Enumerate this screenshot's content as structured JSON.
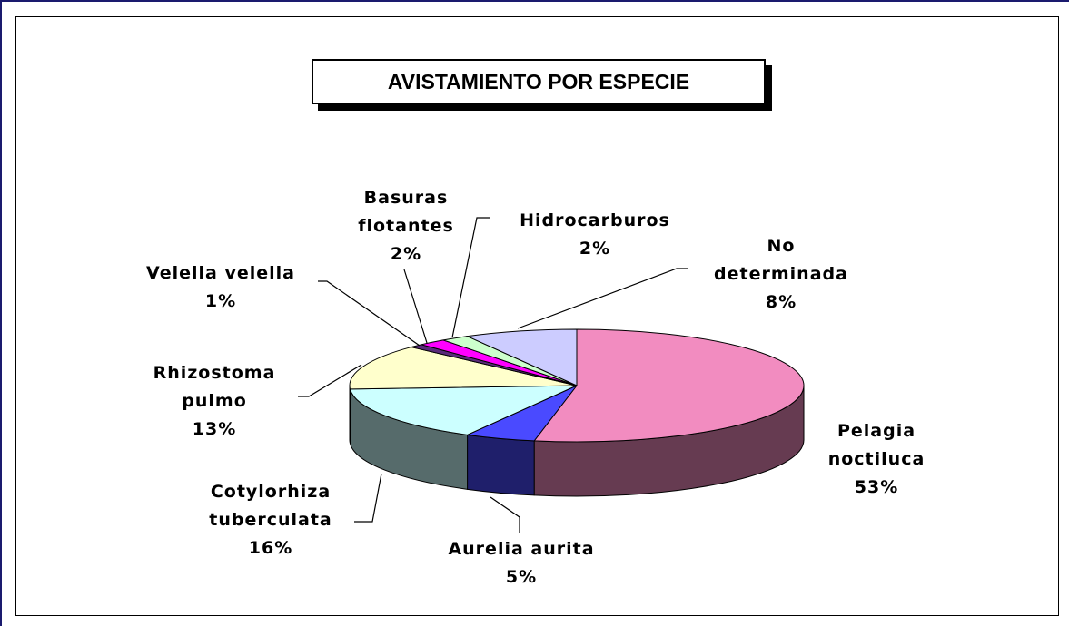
{
  "chart_data": {
    "type": "pie",
    "title": "AVISTAMIENTO POR ESPECIE",
    "categories": [
      "Pelagia noctiluca",
      "Aurelia aurita",
      "Cotylorhiza tuberculata",
      "Rhizostoma pulmo",
      "Velella velella",
      "Basuras flotantes",
      "Hidrocarburos",
      "No determinada"
    ],
    "values": [
      53,
      5,
      16,
      13,
      1,
      2,
      2,
      8
    ],
    "value_labels": [
      "53%",
      "5%",
      "16%",
      "13%",
      "1%",
      "2%",
      "2%",
      "8%"
    ],
    "colors": [
      "#f28cc0",
      "#4a4aff",
      "#ccffff",
      "#ffffcc",
      "#5a2a7a",
      "#ff00ff",
      "#ccffcc",
      "#ccccff"
    ]
  }
}
